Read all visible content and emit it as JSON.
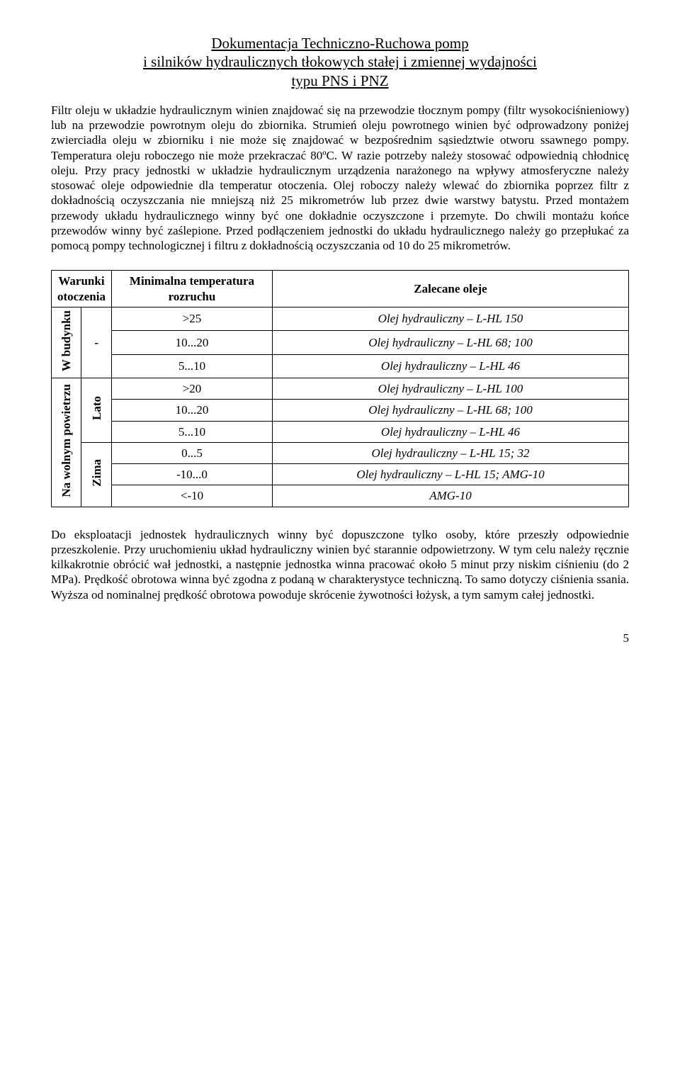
{
  "title": {
    "line1": "Dokumentacja Techniczno-Ruchowa pomp",
    "line2": "i silników hydraulicznych tłokowych stałej i zmiennej wydajności",
    "line3": "typu PNS i PNZ"
  },
  "para1": "Filtr oleju w układzie hydraulicznym winien znajdować się na przewodzie tłocznym pompy (filtr wysokociśnieniowy) lub na przewodzie powrotnym oleju do zbiornika. Strumień oleju powrotnego winien być odprowadzony poniżej zwierciadła oleju w zbiorniku i nie może się znajdować w bezpośrednim sąsiedztwie otworu ssawnego pompy. Temperatura oleju roboczego nie może przekraczać 80ºC. W razie potrzeby należy stosować odpowiednią chłodnicę oleju. Przy pracy jednostki w układzie hydraulicznym urządzenia narażonego na wpływy atmosferyczne należy stosować oleje odpowiednie dla temperatur otoczenia. Olej roboczy należy wlewać do zbiornika poprzez filtr z dokładnością oczyszczania nie mniejszą niż 25 mikrometrów lub przez dwie warstwy batystu. Przed montażem przewody układu hydraulicznego winny być one dokładnie oczyszczone i przemyte. Do chwili montażu końce przewodów winny być zaślepione. Przed podłączeniem jednostki do układu hydraulicznego należy go przepłukać za pomocą pompy technologicznej i filtru z dokładnością oczyszczania od 10 do 25 mikrometrów.",
  "table": {
    "header": {
      "conditions": "Warunki otoczenia",
      "temp": "Minimalna temperatura rozruchu",
      "rec": "Zalecane oleje"
    },
    "groups": {
      "indoor": "W budynku",
      "outdoor": "Na wolnym powietrzu",
      "dash": "-",
      "summer": "Lato",
      "winter": "Zima"
    },
    "rows": [
      {
        "temp": ">25",
        "rec": "Olej hydrauliczny – L-HL 150"
      },
      {
        "temp": "10...20",
        "rec": "Olej hydrauliczny – L-HL 68; 100"
      },
      {
        "temp": "5...10",
        "rec": "Olej hydrauliczny – L-HL 46"
      },
      {
        "temp": ">20",
        "rec": "Olej hydrauliczny – L-HL 100"
      },
      {
        "temp": "10...20",
        "rec": "Olej hydrauliczny – L-HL 68; 100"
      },
      {
        "temp": "5...10",
        "rec": "Olej hydrauliczny – L-HL 46"
      },
      {
        "temp": "0...5",
        "rec": "Olej hydrauliczny – L-HL 15; 32"
      },
      {
        "temp": "-10...0",
        "rec": "Olej hydrauliczny – L-HL 15; AMG-10"
      },
      {
        "temp": "<-10",
        "rec": "AMG-10"
      }
    ]
  },
  "para2": "Do eksploatacji jednostek hydraulicznych winny być dopuszczone tylko osoby, które przeszły odpowiednie przeszkolenie. Przy uruchomieniu układ hydrauliczny winien być starannie odpowietrzony. W tym celu należy ręcznie kilkakrotnie obrócić wał jednostki, a następnie jednostka winna pracować około 5 minut przy niskim ciśnieniu (do 2 MPa). Prędkość obrotowa winna być zgodna z podaną w charakterystyce techniczną. To samo dotyczy ciśnienia ssania. Wyższa od nominalnej prędkość obrotowa powoduje skrócenie żywotności łożysk, a tym samym całej jednostki.",
  "pagenum": "5"
}
